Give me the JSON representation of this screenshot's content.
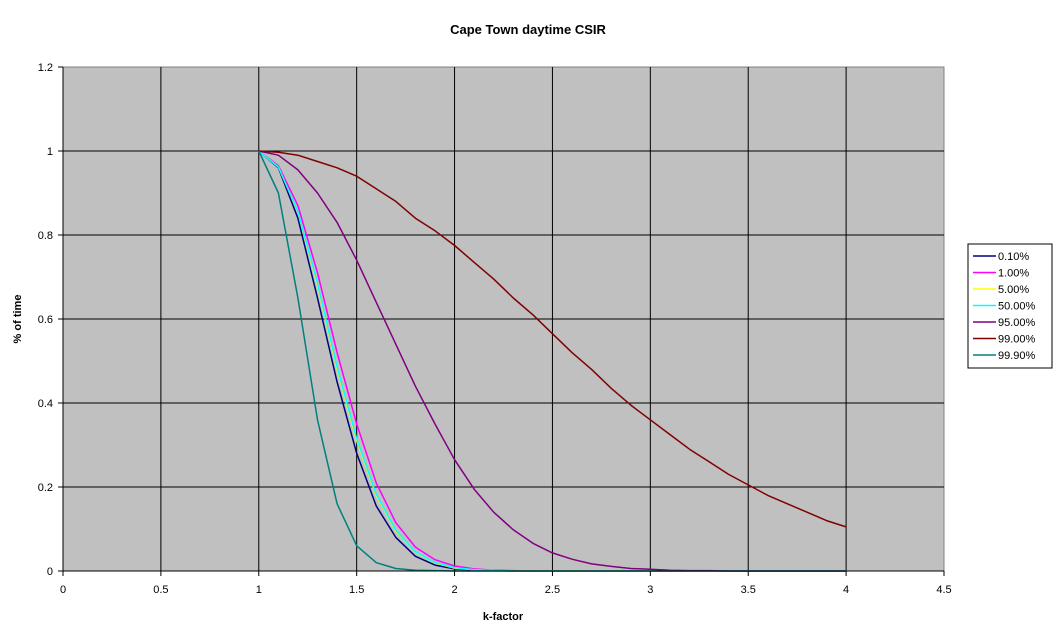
{
  "chart_data": {
    "type": "line",
    "title": "Cape Town daytime CSIR",
    "xlabel": "k-factor",
    "ylabel": "% of time",
    "xlim": [
      0,
      4.5
    ],
    "ylim": [
      0,
      1.2
    ],
    "x_ticks": [
      "0",
      "0.5",
      "1",
      "1.5",
      "2",
      "2.5",
      "3",
      "3.5",
      "4",
      "4.5"
    ],
    "y_ticks": [
      "0",
      "0.2",
      "0.4",
      "0.6",
      "0.8",
      "1",
      "1.2"
    ],
    "grid": true,
    "plot_background": "#c0c0c0",
    "legend_position": "right",
    "x": [
      1.0,
      1.1,
      1.2,
      1.3,
      1.4,
      1.5,
      1.6,
      1.7,
      1.8,
      1.9,
      2.0,
      2.1,
      2.2,
      2.3,
      2.4,
      2.5,
      2.6,
      2.7,
      2.8,
      2.9,
      3.0,
      3.1,
      3.2,
      3.3,
      3.4,
      3.5,
      3.6,
      3.7,
      3.8,
      3.9,
      4.0
    ],
    "series": [
      {
        "name": "0.10%",
        "color": "#000080",
        "values": [
          1.0,
          0.96,
          0.84,
          0.65,
          0.45,
          0.28,
          0.155,
          0.08,
          0.035,
          0.014,
          0.005,
          0.002,
          0.001,
          0,
          0,
          0,
          0,
          0,
          0,
          0,
          0,
          0,
          0,
          0,
          0,
          0,
          0,
          0,
          0,
          0,
          0
        ]
      },
      {
        "name": "1.00%",
        "color": "#ff00ff",
        "values": [
          1.0,
          0.965,
          0.87,
          0.71,
          0.52,
          0.35,
          0.21,
          0.115,
          0.057,
          0.027,
          0.012,
          0.005,
          0.002,
          0.001,
          0,
          0,
          0,
          0,
          0,
          0,
          0,
          0,
          0,
          0,
          0,
          0,
          0,
          0,
          0,
          0,
          0
        ]
      },
      {
        "name": "5.00%",
        "color": "#ffff00",
        "values": [
          1.0,
          0.962,
          0.855,
          0.68,
          0.48,
          0.31,
          0.18,
          0.095,
          0.045,
          0.019,
          0.007,
          0.003,
          0.001,
          0,
          0,
          0,
          0,
          0,
          0,
          0,
          0,
          0,
          0,
          0,
          0,
          0,
          0,
          0,
          0,
          0,
          0
        ]
      },
      {
        "name": "50.00%",
        "color": "#00ffff",
        "values": [
          1.0,
          0.962,
          0.856,
          0.685,
          0.485,
          0.315,
          0.183,
          0.097,
          0.046,
          0.02,
          0.008,
          0.003,
          0.001,
          0,
          0,
          0,
          0,
          0,
          0,
          0,
          0,
          0,
          0,
          0,
          0,
          0,
          0,
          0,
          0,
          0,
          0
        ]
      },
      {
        "name": "95.00%",
        "color": "#800080",
        "values": [
          1.0,
          0.99,
          0.955,
          0.9,
          0.83,
          0.74,
          0.64,
          0.54,
          0.44,
          0.35,
          0.265,
          0.195,
          0.14,
          0.098,
          0.066,
          0.043,
          0.028,
          0.017,
          0.011,
          0.006,
          0.004,
          0.002,
          0.001,
          0.001,
          0,
          0,
          0,
          0,
          0,
          0,
          0
        ]
      },
      {
        "name": "99.00%",
        "color": "#800000",
        "values": [
          1.0,
          0.997,
          0.99,
          0.975,
          0.96,
          0.94,
          0.91,
          0.88,
          0.84,
          0.81,
          0.775,
          0.735,
          0.695,
          0.65,
          0.61,
          0.565,
          0.52,
          0.48,
          0.435,
          0.395,
          0.36,
          0.325,
          0.29,
          0.26,
          0.23,
          0.205,
          0.18,
          0.16,
          0.14,
          0.12,
          0.105
        ]
      },
      {
        "name": "99.90%",
        "color": "#008080",
        "values": [
          1.0,
          0.9,
          0.65,
          0.36,
          0.16,
          0.06,
          0.02,
          0.006,
          0.002,
          0.001,
          0,
          0,
          0,
          0,
          0,
          0,
          0,
          0,
          0,
          0,
          0,
          0,
          0,
          0,
          0,
          0,
          0,
          0,
          0,
          0,
          0
        ]
      }
    ]
  }
}
